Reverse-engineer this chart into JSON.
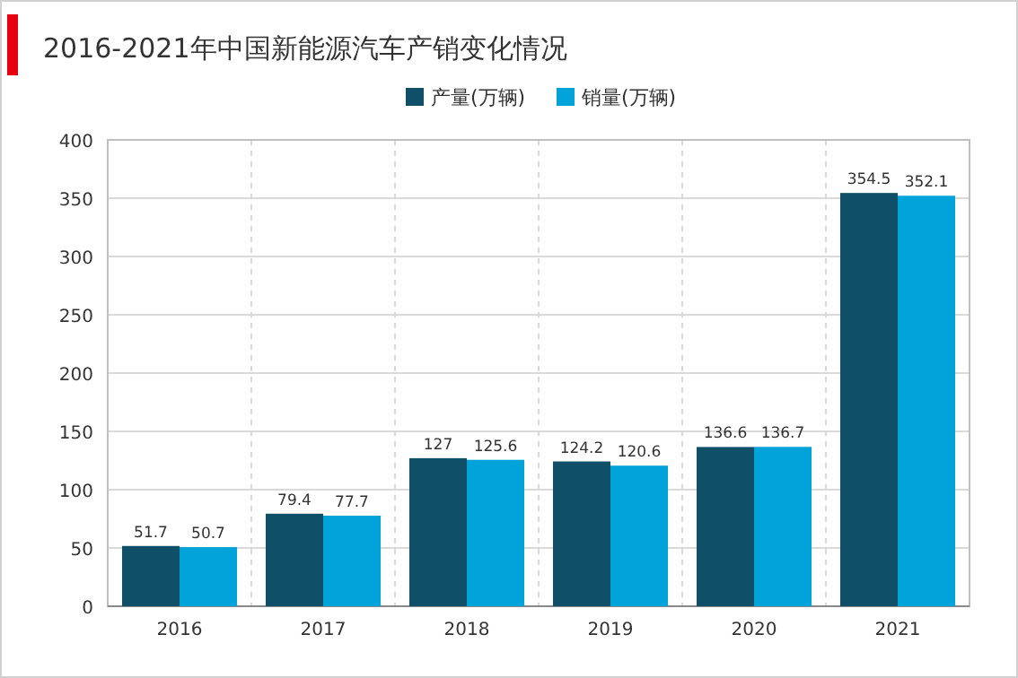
{
  "chart_data": {
    "type": "bar",
    "title": "2016-2021年中国新能源汽车产销变化情况",
    "categories": [
      "2016",
      "2017",
      "2018",
      "2019",
      "2020",
      "2021"
    ],
    "series": [
      {
        "name": "产量(万辆)",
        "color": "#0f5068",
        "values": [
          51.7,
          79.4,
          127,
          124.2,
          136.6,
          354.5
        ]
      },
      {
        "name": "销量(万辆)",
        "color": "#00a3d9",
        "values": [
          50.7,
          77.7,
          125.6,
          120.6,
          136.7,
          352.1
        ]
      }
    ],
    "ylim": [
      0,
      400
    ],
    "yticks": [
      0,
      50,
      100,
      150,
      200,
      250,
      300,
      350,
      400
    ],
    "grid": true,
    "legend": "top",
    "data_labels": true
  }
}
